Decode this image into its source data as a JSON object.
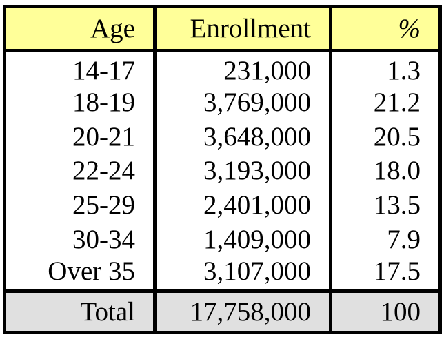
{
  "table": {
    "headers": {
      "age": "Age",
      "enrollment": "Enrollment",
      "percent": "%"
    },
    "rows": [
      {
        "age": "14-17",
        "enrollment": "231,000",
        "percent": "1.3"
      },
      {
        "age": "18-19",
        "enrollment": "3,769,000",
        "percent": "21.2"
      },
      {
        "age": "20-21",
        "enrollment": "3,648,000",
        "percent": "20.5"
      },
      {
        "age": "22-24",
        "enrollment": "3,193,000",
        "percent": "18.0"
      },
      {
        "age": "25-29",
        "enrollment": "2,401,000",
        "percent": "13.5"
      },
      {
        "age": "30-34",
        "enrollment": "1,409,000",
        "percent": "7.9"
      },
      {
        "age": "Over 35",
        "enrollment": "3,107,000",
        "percent": "17.5"
      }
    ],
    "total": {
      "age": "Total",
      "enrollment": "17,758,000",
      "percent": "100"
    }
  },
  "colors": {
    "header_bg": "#ffff99",
    "total_bg": "#e0e0e0",
    "border": "#000000"
  }
}
